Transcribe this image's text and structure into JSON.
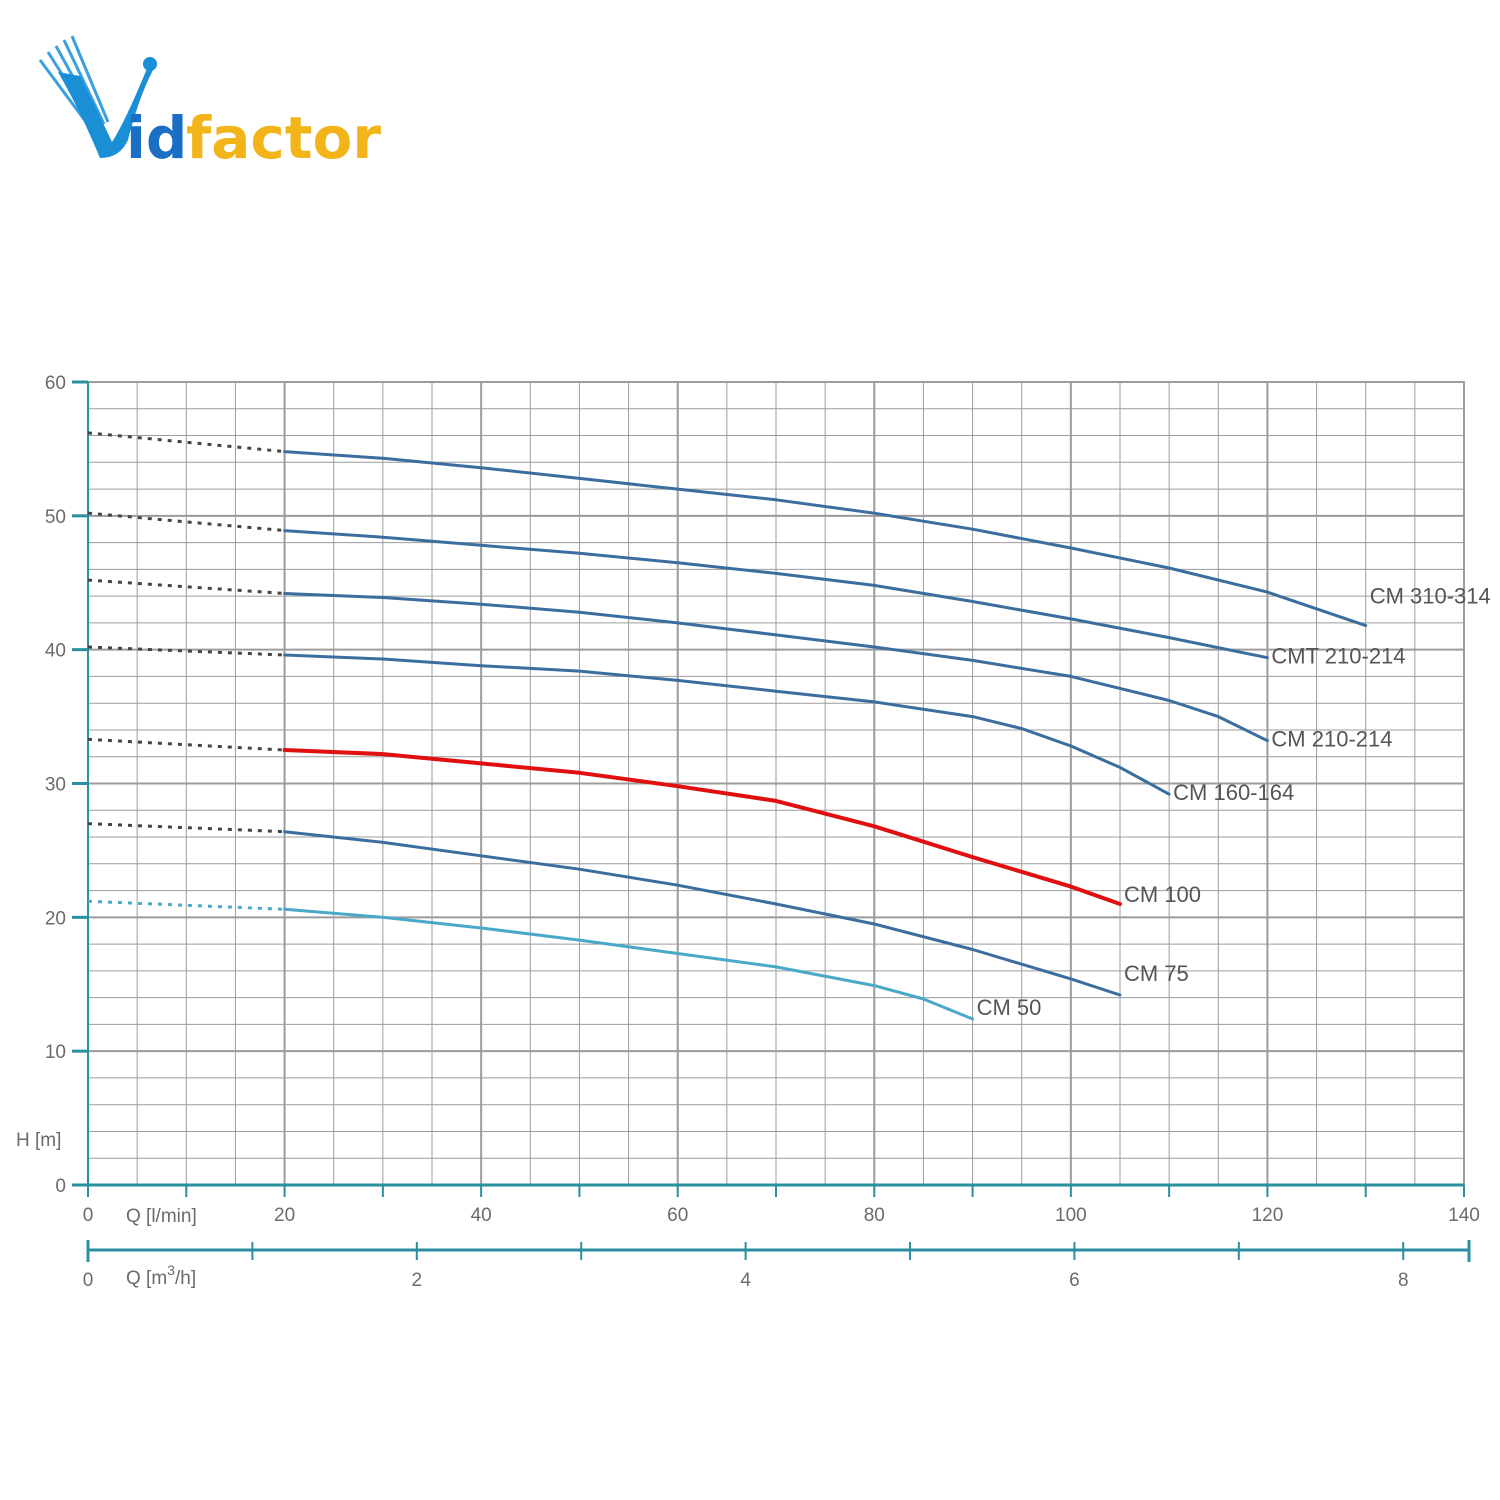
{
  "logo": {
    "text_v": "V",
    "text_id": "id",
    "text_factor": "factor",
    "colors": {
      "v": "#1a8fd6",
      "id": "#1a6fc4",
      "factor": "#f2b418"
    }
  },
  "chart_data": {
    "type": "line",
    "ylabel": "H [m]",
    "xlabel": "Q [l/min]",
    "x2label": "Q [m3/h]",
    "xlim": [
      0,
      140
    ],
    "ylim": [
      0,
      60
    ],
    "x2lim": [
      0,
      8.4
    ],
    "x_ticks": [
      "0",
      "20",
      "40",
      "60",
      "80",
      "100",
      "120",
      "140"
    ],
    "y_ticks": [
      "0",
      "10",
      "20",
      "30",
      "40",
      "50",
      "60"
    ],
    "x2_ticks": [
      "0",
      "2",
      "4",
      "6",
      "8"
    ],
    "grid": true,
    "colors": {
      "grid": "#9c9c9c",
      "axis": "#2a8f9f",
      "series_dark": "#3b6e9e",
      "series_light": "#4aa9c8",
      "series_highlight": "#e01010"
    },
    "series": [
      {
        "name": "CM 310-314",
        "color": "#3b6e9e",
        "dashed": [
          [
            0,
            56.2
          ],
          [
            20,
            54.8
          ]
        ],
        "x": [
          20,
          30,
          40,
          50,
          60,
          70,
          80,
          90,
          100,
          110,
          120,
          130
        ],
        "y": [
          54.8,
          54.3,
          53.6,
          52.8,
          52.0,
          51.2,
          50.2,
          49.0,
          47.6,
          46.1,
          44.3,
          41.8
        ]
      },
      {
        "name": "CMT 210-214",
        "color": "#3b6e9e",
        "dashed": [
          [
            0,
            50.2
          ],
          [
            20,
            48.9
          ]
        ],
        "x": [
          20,
          30,
          40,
          50,
          60,
          70,
          80,
          90,
          100,
          110,
          120
        ],
        "y": [
          48.9,
          48.4,
          47.8,
          47.2,
          46.5,
          45.7,
          44.8,
          43.6,
          42.3,
          40.9,
          39.4
        ]
      },
      {
        "name": "CM 210-214",
        "color": "#3b6e9e",
        "dashed": [
          [
            0,
            45.2
          ],
          [
            20,
            44.2
          ]
        ],
        "x": [
          20,
          30,
          40,
          50,
          60,
          70,
          80,
          90,
          100,
          110,
          115,
          120
        ],
        "y": [
          44.2,
          43.9,
          43.4,
          42.8,
          42.0,
          41.1,
          40.2,
          39.2,
          38.0,
          36.2,
          35.0,
          33.2
        ]
      },
      {
        "name": "CM 160-164",
        "color": "#3b6e9e",
        "dashed": [
          [
            0,
            40.2
          ],
          [
            20,
            39.6
          ]
        ],
        "x": [
          20,
          30,
          40,
          50,
          60,
          70,
          80,
          90,
          95,
          100,
          105,
          110
        ],
        "y": [
          39.6,
          39.3,
          38.8,
          38.4,
          37.7,
          36.9,
          36.1,
          35.0,
          34.1,
          32.8,
          31.2,
          29.2
        ]
      },
      {
        "name": "CM 100",
        "color": "#e01010",
        "dashed": [
          [
            0,
            33.3
          ],
          [
            20,
            32.5
          ]
        ],
        "x": [
          20,
          30,
          40,
          50,
          60,
          70,
          80,
          90,
          100,
          105
        ],
        "y": [
          32.5,
          32.2,
          31.5,
          30.8,
          29.8,
          28.7,
          26.8,
          24.5,
          22.3,
          21.0
        ]
      },
      {
        "name": "CM 75",
        "color": "#3b6e9e",
        "dashed": [
          [
            0,
            27.0
          ],
          [
            20,
            26.4
          ]
        ],
        "x": [
          20,
          30,
          40,
          50,
          60,
          70,
          80,
          90,
          100,
          105
        ],
        "y": [
          26.4,
          25.6,
          24.6,
          23.6,
          22.4,
          21.0,
          19.5,
          17.6,
          15.4,
          14.2
        ]
      },
      {
        "name": "CM 50",
        "color": "#4aa9c8",
        "dashed": [
          [
            0,
            21.2
          ],
          [
            20,
            20.6
          ]
        ],
        "x": [
          20,
          30,
          40,
          50,
          60,
          70,
          80,
          85,
          90
        ],
        "y": [
          20.6,
          20.0,
          19.2,
          18.3,
          17.3,
          16.3,
          14.9,
          13.9,
          12.4
        ]
      }
    ]
  }
}
